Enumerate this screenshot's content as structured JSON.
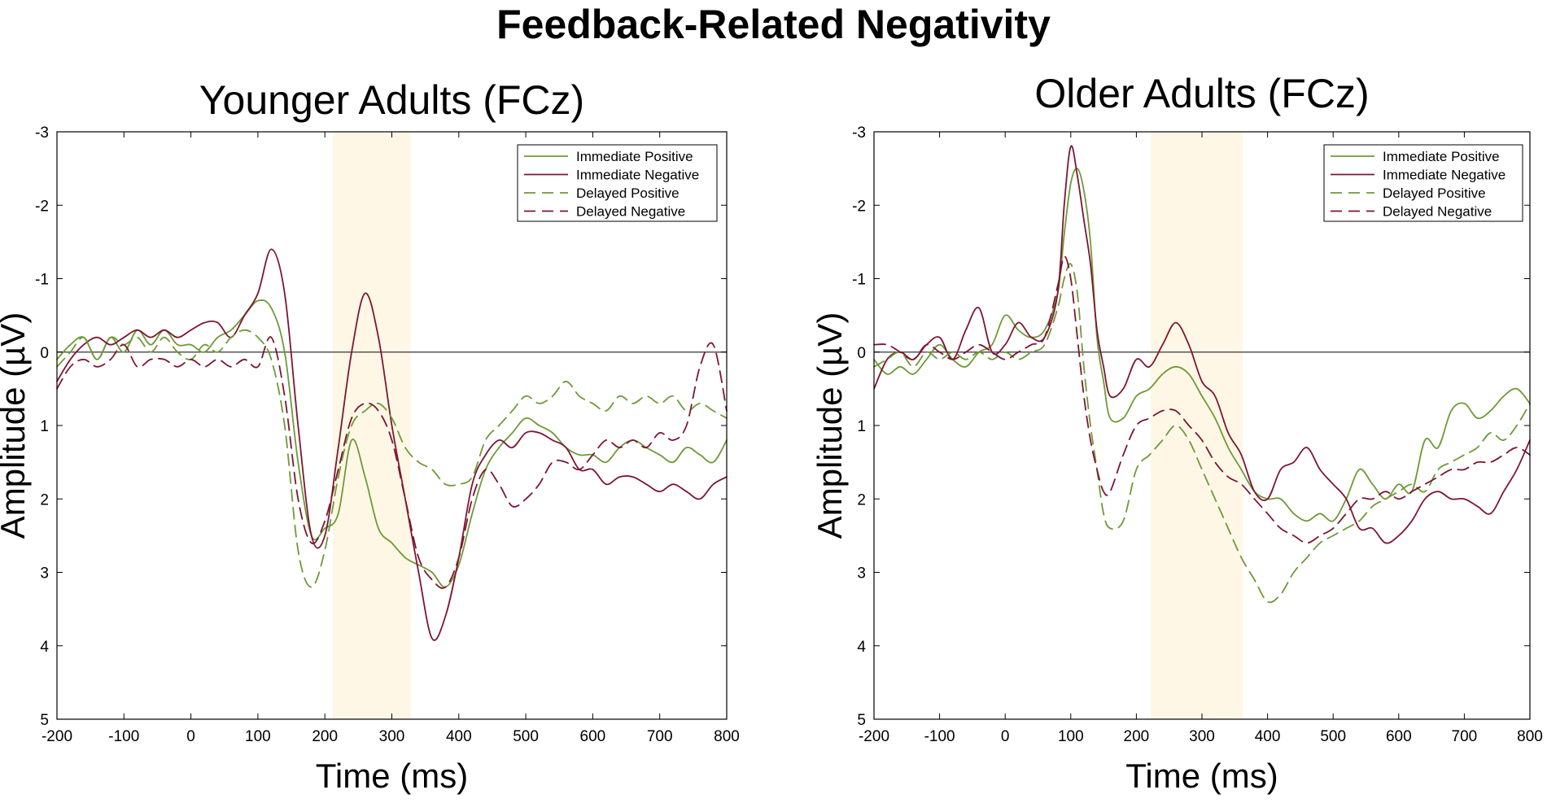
{
  "title": "Feedback-Related Negativity",
  "colors": {
    "positive": "#6e9a37",
    "negative": "#7d1632",
    "highlight": "#fef7e6",
    "zero_line": "#555555"
  },
  "chart_data": [
    {
      "type": "line",
      "title": "Younger Adults (FCz)",
      "xlabel": "Time (ms)",
      "ylabel": "Amplitude (µV)",
      "xlim": [
        -200,
        800
      ],
      "ylim": [
        -3,
        5
      ],
      "y_inverted": true,
      "xticks": [
        -200,
        -100,
        0,
        100,
        200,
        300,
        400,
        500,
        600,
        700,
        800
      ],
      "yticks": [
        -3,
        -2,
        -1,
        0,
        1,
        2,
        3,
        4,
        5
      ],
      "highlight_window_ms": [
        212,
        328
      ],
      "legend": [
        "Immediate Positive",
        "Immediate Negative",
        "Delayed Positive",
        "Delayed Negative"
      ],
      "series": [
        {
          "name": "Immediate Positive",
          "color_key": "positive",
          "dash": false,
          "x": [
            -200,
            -180,
            -160,
            -140,
            -120,
            -100,
            -80,
            -60,
            -40,
            -20,
            0,
            20,
            40,
            60,
            80,
            100,
            120,
            140,
            160,
            180,
            200,
            220,
            240,
            260,
            280,
            300,
            320,
            340,
            360,
            380,
            400,
            420,
            440,
            460,
            480,
            500,
            520,
            540,
            560,
            580,
            600,
            620,
            640,
            660,
            680,
            700,
            720,
            740,
            760,
            780,
            800
          ],
          "y": [
            0.1,
            -0.1,
            -0.2,
            0.1,
            -0.2,
            0.0,
            -0.3,
            -0.1,
            -0.3,
            -0.1,
            -0.1,
            0.0,
            -0.2,
            -0.3,
            -0.5,
            -0.7,
            -0.6,
            0.0,
            1.5,
            2.5,
            2.4,
            2.2,
            1.2,
            1.7,
            2.4,
            2.6,
            2.8,
            2.9,
            3.0,
            3.2,
            2.9,
            2.2,
            1.6,
            1.3,
            1.1,
            0.9,
            1.0,
            1.1,
            1.3,
            1.4,
            1.4,
            1.5,
            1.3,
            1.2,
            1.3,
            1.4,
            1.5,
            1.3,
            1.4,
            1.5,
            1.2
          ]
        },
        {
          "name": "Immediate Negative",
          "color_key": "negative",
          "dash": false,
          "x": [
            -200,
            -180,
            -160,
            -140,
            -120,
            -100,
            -80,
            -60,
            -40,
            -20,
            0,
            20,
            40,
            60,
            80,
            100,
            120,
            140,
            160,
            180,
            200,
            220,
            240,
            260,
            280,
            300,
            320,
            340,
            360,
            380,
            400,
            420,
            440,
            460,
            480,
            500,
            520,
            540,
            560,
            580,
            600,
            620,
            640,
            660,
            680,
            700,
            720,
            740,
            760,
            780,
            800
          ],
          "y": [
            0.4,
            0.1,
            -0.1,
            -0.2,
            -0.1,
            -0.2,
            -0.3,
            -0.2,
            -0.3,
            -0.2,
            -0.3,
            -0.4,
            -0.4,
            -0.2,
            -0.5,
            -0.8,
            -1.4,
            -0.8,
            1.0,
            2.5,
            2.5,
            1.3,
            0.0,
            -0.8,
            -0.2,
            1.0,
            2.0,
            3.0,
            3.9,
            3.6,
            2.8,
            1.8,
            1.4,
            1.2,
            1.3,
            1.1,
            1.1,
            1.2,
            1.3,
            1.6,
            1.6,
            1.8,
            1.7,
            1.7,
            1.8,
            1.9,
            1.8,
            1.9,
            2.0,
            1.8,
            1.7
          ]
        },
        {
          "name": "Delayed Positive",
          "color_key": "positive",
          "dash": true,
          "x": [
            -200,
            -180,
            -160,
            -140,
            -120,
            -100,
            -80,
            -60,
            -40,
            -20,
            0,
            20,
            40,
            60,
            80,
            100,
            120,
            140,
            160,
            180,
            200,
            220,
            240,
            260,
            280,
            300,
            320,
            340,
            360,
            380,
            400,
            420,
            440,
            460,
            480,
            500,
            520,
            540,
            560,
            580,
            600,
            620,
            640,
            660,
            680,
            700,
            720,
            740,
            760,
            780,
            800
          ],
          "y": [
            0.2,
            0.0,
            -0.2,
            0.1,
            -0.2,
            -0.1,
            -0.2,
            0.0,
            -0.2,
            0.0,
            0.1,
            -0.1,
            0.0,
            -0.2,
            -0.3,
            -0.2,
            0.1,
            1.0,
            2.7,
            3.2,
            2.7,
            1.7,
            1.0,
            0.8,
            0.7,
            0.9,
            1.3,
            1.5,
            1.6,
            1.8,
            1.8,
            1.7,
            1.2,
            1.0,
            0.8,
            0.6,
            0.7,
            0.6,
            0.4,
            0.6,
            0.7,
            0.8,
            0.6,
            0.7,
            0.6,
            0.7,
            0.6,
            0.8,
            0.7,
            0.8,
            0.9
          ]
        },
        {
          "name": "Delayed Negative",
          "color_key": "negative",
          "dash": true,
          "x": [
            -200,
            -180,
            -160,
            -140,
            -120,
            -100,
            -80,
            -60,
            -40,
            -20,
            0,
            20,
            40,
            60,
            80,
            100,
            120,
            140,
            160,
            180,
            200,
            220,
            240,
            260,
            280,
            300,
            320,
            340,
            360,
            380,
            400,
            420,
            440,
            460,
            480,
            500,
            520,
            540,
            560,
            580,
            600,
            620,
            640,
            660,
            680,
            700,
            720,
            740,
            760,
            780,
            800
          ],
          "y": [
            0.5,
            0.2,
            0.1,
            0.2,
            0.1,
            -0.1,
            0.2,
            0.1,
            0.1,
            0.2,
            0.1,
            0.2,
            0.1,
            0.2,
            0.1,
            0.2,
            -0.2,
            0.6,
            2.0,
            2.6,
            2.3,
            1.6,
            0.9,
            0.7,
            0.8,
            1.2,
            2.0,
            2.8,
            3.1,
            3.2,
            2.8,
            2.0,
            1.6,
            1.8,
            2.1,
            2.0,
            1.8,
            1.5,
            1.5,
            1.6,
            1.4,
            1.2,
            1.3,
            1.2,
            1.3,
            1.1,
            1.2,
            1.0,
            0.2,
            -0.1,
            0.8
          ]
        }
      ]
    },
    {
      "type": "line",
      "title": "Older Adults (FCz)",
      "xlabel": "Time (ms)",
      "ylabel": "Amplitude (µV)",
      "xlim": [
        -200,
        800
      ],
      "ylim": [
        -3,
        5
      ],
      "y_inverted": true,
      "xticks": [
        -200,
        -100,
        0,
        100,
        200,
        300,
        400,
        500,
        600,
        700,
        800
      ],
      "yticks": [
        -3,
        -2,
        -1,
        0,
        1,
        2,
        3,
        4,
        5
      ],
      "highlight_window_ms": [
        222,
        362
      ],
      "legend": [
        "Immediate Positive",
        "Immediate Negative",
        "Delayed Positive",
        "Delayed Negative"
      ],
      "series": [
        {
          "name": "Immediate Positive",
          "color_key": "positive",
          "dash": false,
          "x": [
            -200,
            -180,
            -160,
            -140,
            -120,
            -100,
            -80,
            -60,
            -40,
            -20,
            0,
            20,
            40,
            60,
            80,
            90,
            100,
            110,
            120,
            130,
            140,
            150,
            160,
            180,
            200,
            220,
            240,
            260,
            280,
            300,
            320,
            340,
            360,
            380,
            400,
            420,
            440,
            460,
            480,
            500,
            520,
            540,
            560,
            580,
            600,
            620,
            640,
            660,
            680,
            700,
            720,
            740,
            760,
            780,
            800
          ],
          "y": [
            0.1,
            0.3,
            0.2,
            0.3,
            0.1,
            -0.1,
            0.1,
            0.2,
            0.0,
            -0.1,
            -0.5,
            -0.3,
            -0.2,
            -0.3,
            -0.8,
            -1.6,
            -2.3,
            -2.5,
            -2.2,
            -1.5,
            -0.2,
            0.4,
            0.9,
            0.9,
            0.6,
            0.5,
            0.3,
            0.2,
            0.3,
            0.6,
            0.9,
            1.3,
            1.6,
            1.9,
            2.0,
            2.0,
            2.2,
            2.3,
            2.2,
            2.3,
            2.0,
            1.6,
            1.8,
            2.0,
            1.8,
            1.9,
            1.2,
            1.3,
            0.8,
            0.7,
            0.9,
            0.8,
            0.6,
            0.5,
            0.7
          ]
        },
        {
          "name": "Immediate Negative",
          "color_key": "negative",
          "dash": false,
          "x": [
            -200,
            -180,
            -160,
            -140,
            -120,
            -100,
            -80,
            -60,
            -40,
            -20,
            0,
            20,
            40,
            60,
            80,
            90,
            100,
            110,
            120,
            130,
            140,
            150,
            160,
            180,
            200,
            220,
            240,
            260,
            280,
            300,
            320,
            340,
            360,
            380,
            400,
            420,
            440,
            460,
            480,
            500,
            520,
            540,
            560,
            580,
            600,
            620,
            640,
            660,
            680,
            700,
            720,
            740,
            760,
            780,
            800
          ],
          "y": [
            0.5,
            0.1,
            0.0,
            0.1,
            -0.1,
            -0.2,
            0.1,
            -0.3,
            -0.6,
            0.0,
            -0.1,
            -0.4,
            -0.2,
            -0.2,
            -0.8,
            -2.0,
            -2.8,
            -2.4,
            -1.8,
            -1.2,
            -0.3,
            0.2,
            0.6,
            0.5,
            0.1,
            0.2,
            -0.1,
            -0.4,
            -0.1,
            0.4,
            0.6,
            1.1,
            1.4,
            1.9,
            2.0,
            1.6,
            1.5,
            1.3,
            1.6,
            1.8,
            2.0,
            2.4,
            2.4,
            2.6,
            2.5,
            2.3,
            2.0,
            1.9,
            2.0,
            2.0,
            2.1,
            2.2,
            1.9,
            1.6,
            1.2
          ]
        },
        {
          "name": "Delayed Positive",
          "color_key": "positive",
          "dash": true,
          "x": [
            -200,
            -180,
            -160,
            -140,
            -120,
            -100,
            -80,
            -60,
            -40,
            -20,
            0,
            20,
            40,
            60,
            80,
            90,
            100,
            110,
            120,
            130,
            140,
            150,
            160,
            180,
            200,
            220,
            240,
            260,
            280,
            300,
            320,
            340,
            360,
            380,
            400,
            420,
            440,
            460,
            480,
            500,
            520,
            540,
            560,
            580,
            600,
            620,
            640,
            660,
            680,
            700,
            720,
            740,
            760,
            780,
            800
          ],
          "y": [
            0.2,
            0.1,
            0.0,
            0.2,
            0.0,
            0.1,
            0.0,
            0.1,
            0.0,
            0.1,
            0.0,
            0.1,
            0.0,
            -0.1,
            -0.6,
            -1.0,
            -1.2,
            -0.8,
            0.2,
            1.0,
            1.6,
            2.2,
            2.4,
            2.3,
            1.6,
            1.4,
            1.2,
            1.0,
            1.2,
            1.6,
            2.0,
            2.4,
            2.8,
            3.1,
            3.4,
            3.3,
            3.0,
            2.8,
            2.6,
            2.5,
            2.4,
            2.3,
            2.1,
            2.0,
            1.9,
            1.8,
            1.9,
            1.6,
            1.5,
            1.4,
            1.3,
            1.1,
            1.2,
            1.0,
            0.7
          ]
        },
        {
          "name": "Delayed Negative",
          "color_key": "negative",
          "dash": true,
          "x": [
            -200,
            -180,
            -160,
            -140,
            -120,
            -100,
            -80,
            -60,
            -40,
            -20,
            0,
            20,
            40,
            60,
            80,
            90,
            100,
            110,
            120,
            130,
            140,
            150,
            160,
            180,
            200,
            220,
            240,
            260,
            280,
            300,
            320,
            340,
            360,
            380,
            400,
            420,
            440,
            460,
            480,
            500,
            520,
            540,
            560,
            580,
            600,
            620,
            640,
            660,
            680,
            700,
            720,
            740,
            760,
            780,
            800
          ],
          "y": [
            -0.1,
            -0.1,
            0.0,
            0.1,
            -0.1,
            0.0,
            0.1,
            0.0,
            -0.1,
            0.0,
            0.1,
            0.0,
            -0.1,
            -0.2,
            -0.9,
            -1.3,
            -1.0,
            -0.2,
            0.6,
            1.2,
            1.6,
            1.9,
            1.9,
            1.4,
            1.0,
            0.9,
            0.8,
            0.8,
            1.0,
            1.2,
            1.5,
            1.7,
            1.8,
            2.0,
            2.2,
            2.4,
            2.5,
            2.6,
            2.5,
            2.4,
            2.2,
            2.0,
            2.0,
            1.9,
            2.0,
            1.9,
            1.8,
            1.7,
            1.6,
            1.6,
            1.5,
            1.5,
            1.4,
            1.3,
            1.4
          ]
        }
      ]
    }
  ]
}
